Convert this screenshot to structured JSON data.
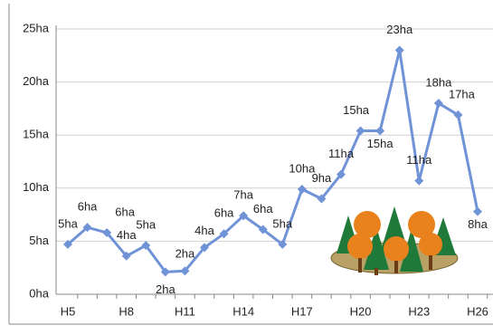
{
  "chart_data": {
    "type": "line",
    "categories": [
      "H5",
      null,
      null,
      "H8",
      null,
      null,
      "H11",
      null,
      null,
      "H14",
      null,
      null,
      "H17",
      null,
      null,
      "H20",
      null,
      null,
      "H23",
      null,
      null,
      "H26"
    ],
    "series": [
      {
        "color": "#6f93d6",
        "values": [
          4.7,
          6.3,
          5.8,
          3.6,
          4.6,
          2.1,
          2.2,
          4.4,
          5.7,
          7.4,
          6.1,
          4.7,
          9.9,
          9.0,
          11.3,
          15.4,
          15.4,
          23.0,
          10.7,
          18.0,
          16.9,
          7.8
        ],
        "value_labels": [
          "5ha",
          "6ha",
          "6ha",
          "4ha",
          "5ha",
          "2ha",
          "2ha",
          "4ha",
          "6ha",
          "7ha",
          "6ha",
          "5ha",
          "10ha",
          "9ha",
          "11ha",
          "15ha",
          "15ha",
          "23ha",
          "11ha",
          "18ha",
          "17ha",
          "8ha"
        ]
      }
    ],
    "ylim": [
      0,
      25
    ],
    "yticks": [
      {
        "value": 0,
        "label": "0ha"
      },
      {
        "value": 5,
        "label": "5ha"
      },
      {
        "value": 10,
        "label": "10ha"
      },
      {
        "value": 15,
        "label": "15ha"
      },
      {
        "value": 20,
        "label": "20ha"
      },
      {
        "value": 25,
        "label": "25ha"
      }
    ],
    "grid": true
  }
}
